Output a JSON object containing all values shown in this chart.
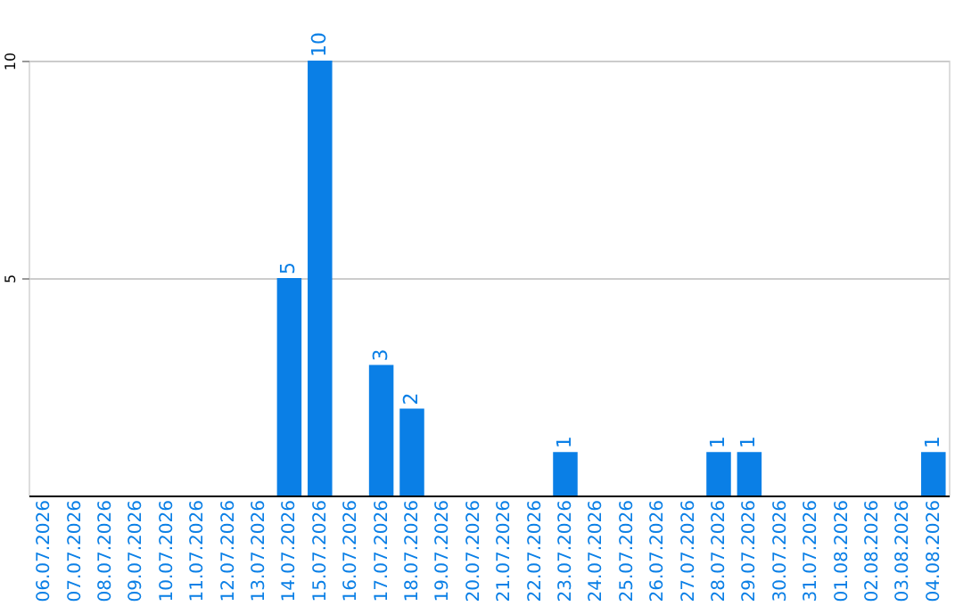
{
  "chart_data": {
    "type": "bar",
    "categories": [
      "06.07.2026",
      "07.07.2026",
      "08.07.2026",
      "09.07.2026",
      "10.07.2026",
      "11.07.2026",
      "12.07.2026",
      "13.07.2026",
      "14.07.2026",
      "15.07.2026",
      "16.07.2026",
      "17.07.2026",
      "18.07.2026",
      "19.07.2026",
      "20.07.2026",
      "21.07.2026",
      "22.07.2026",
      "23.07.2026",
      "24.07.2026",
      "25.07.2026",
      "26.07.2026",
      "27.07.2026",
      "28.07.2026",
      "29.07.2026",
      "30.07.2026",
      "31.07.2026",
      "01.08.2026",
      "02.08.2026",
      "03.08.2026",
      "04.08.2026"
    ],
    "values": [
      0,
      0,
      0,
      0,
      0,
      0,
      0,
      0,
      5,
      10,
      0,
      3,
      2,
      0,
      0,
      0,
      0,
      1,
      0,
      0,
      0,
      0,
      1,
      1,
      0,
      0,
      0,
      0,
      0,
      1
    ],
    "value_labels": [
      null,
      null,
      null,
      null,
      null,
      null,
      null,
      null,
      "5",
      "10",
      null,
      "3",
      "2",
      null,
      null,
      null,
      null,
      "1",
      null,
      null,
      null,
      null,
      "1",
      "1",
      null,
      null,
      null,
      null,
      null,
      "1"
    ],
    "color": "#0a7fe6",
    "ylim": [
      0,
      10
    ],
    "yticks": [
      5,
      10
    ],
    "grid": "y"
  }
}
